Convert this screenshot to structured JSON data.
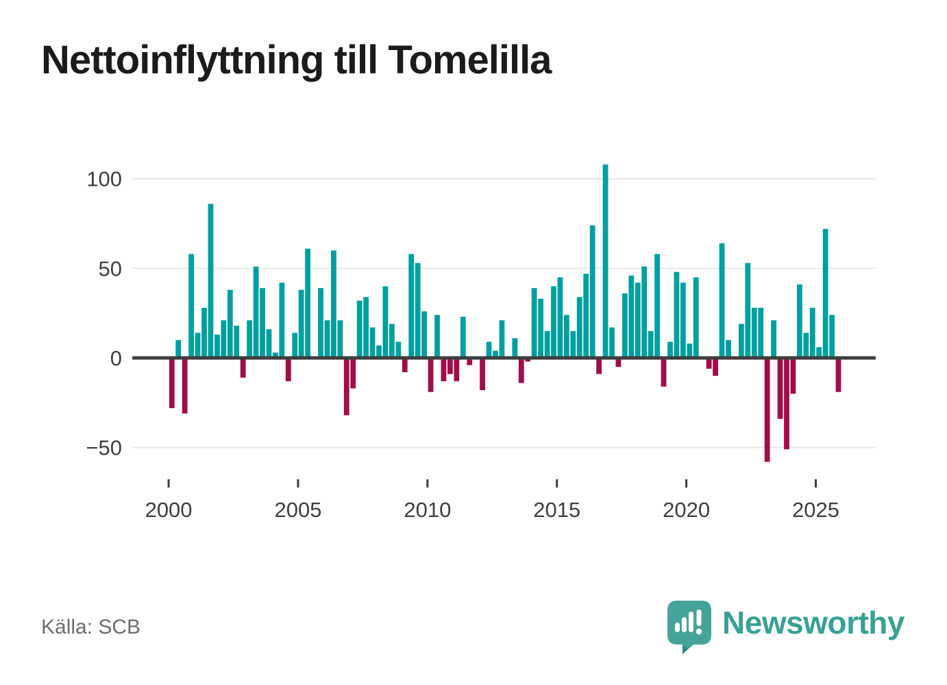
{
  "header": {
    "title": "Nettoinflyttning till Tomelilla"
  },
  "footer": {
    "source_label": "Källa: SCB",
    "brand_name": "Newsworthy",
    "brand_icon": "newsworthy-speech-bubble-barchart-icon"
  },
  "chart_data": {
    "type": "bar",
    "title": "Nettoinflyttning till Tomelilla",
    "frequency": "quarterly",
    "start_year": 2000,
    "values": [
      -28,
      10,
      -31,
      58,
      14,
      28,
      86,
      13,
      21,
      38,
      18,
      -11,
      21,
      51,
      39,
      16,
      3,
      42,
      -13,
      14,
      38,
      61,
      0,
      39,
      21,
      60,
      21,
      -32,
      -17,
      32,
      34,
      17,
      7,
      40,
      19,
      9,
      -8,
      58,
      53,
      26,
      -19,
      24,
      -13,
      -9,
      -13,
      23,
      -4,
      0,
      -18,
      9,
      4,
      21,
      1,
      11,
      -14,
      -2,
      39,
      33,
      15,
      40,
      45,
      24,
      15,
      34,
      47,
      74,
      -9,
      108,
      17,
      -5,
      36,
      46,
      42,
      51,
      15,
      58,
      -16,
      9,
      48,
      42,
      8,
      45,
      0,
      -6,
      -10,
      64,
      10,
      0,
      19,
      53,
      28,
      28,
      -58,
      21,
      -34,
      -51,
      -20,
      41,
      14,
      28,
      6,
      72,
      24,
      -19
    ],
    "x_ticks": [
      2000,
      2005,
      2010,
      2015,
      2020,
      2025
    ],
    "y_ticks": [
      100,
      50,
      0,
      -50
    ],
    "ylim": [
      -62,
      112
    ],
    "grid": true,
    "legend": "none",
    "colors": {
      "positive": "#00a0a0",
      "negative": "#a00d49",
      "gridline": "#e8e8e8",
      "zero_line": "#3d3d3d",
      "tick_label": "#3e3e3e"
    }
  }
}
